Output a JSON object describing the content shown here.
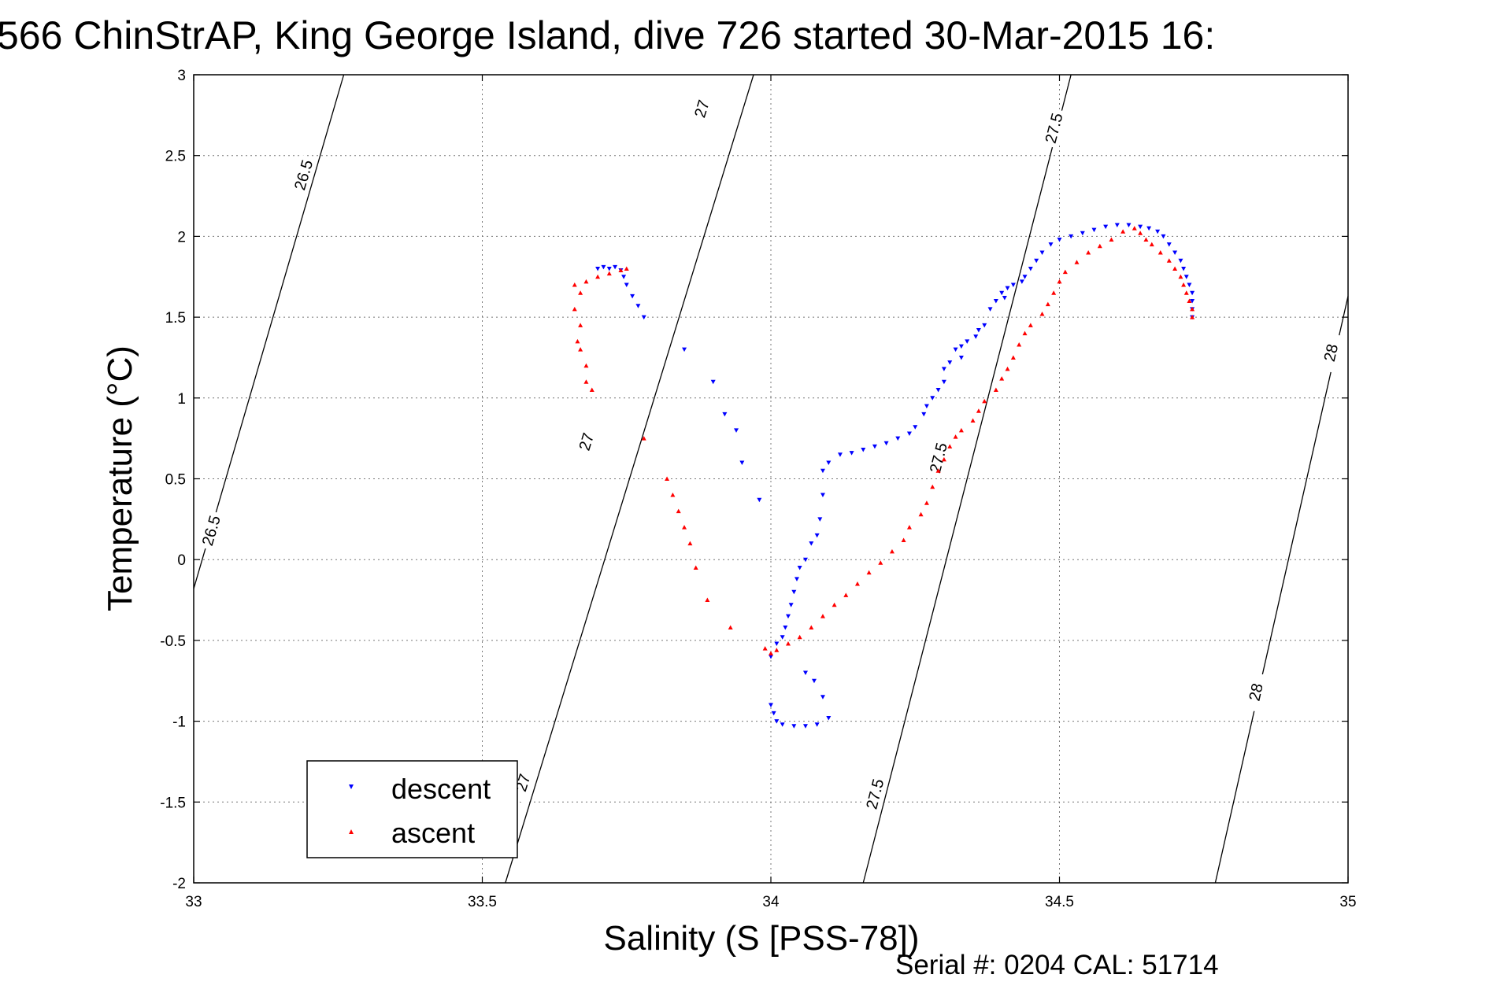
{
  "chart_data": {
    "type": "scatter",
    "title": "566 ChinStrAP, King George Island, dive 726 started 30-Mar-2015 16:",
    "xlabel": "Salinity (S [PSS-78])",
    "ylabel": "Temperature (°C)",
    "footer": "Serial #: 0204  CAL: 51714",
    "xlim": [
      33,
      35
    ],
    "ylim": [
      -2,
      3
    ],
    "grid": true,
    "legend_position": "bottom-left",
    "x_ticks": [
      "33",
      "33.5",
      "34",
      "34.5",
      "35"
    ],
    "y_ticks": [
      "3",
      "2.5",
      "2",
      "1.5",
      "1",
      "0.5",
      "0",
      "-0.5",
      "-1",
      "-1.5",
      "-2"
    ],
    "contours": [
      {
        "label": "26.5",
        "points": [
          [
            33.0,
            -0.18
          ],
          [
            33.26,
            3.0
          ]
        ],
        "label_positions": [
          [
            33.19,
            2.38
          ],
          [
            33.03,
            0.18
          ]
        ]
      },
      {
        "label": "27",
        "points": [
          [
            33.54,
            -2.0
          ],
          [
            33.97,
            3.0
          ]
        ],
        "label_positions": [
          [
            33.88,
            2.79
          ],
          [
            33.68,
            0.73
          ],
          [
            33.57,
            -1.38
          ]
        ]
      },
      {
        "label": "27.5",
        "points": [
          [
            34.16,
            -2.0
          ],
          [
            34.52,
            3.0
          ]
        ],
        "label_positions": [
          [
            34.49,
            2.67
          ],
          [
            34.29,
            0.63
          ],
          [
            34.18,
            -1.45
          ]
        ]
      },
      {
        "label": "28",
        "points": [
          [
            34.77,
            -2.0
          ],
          [
            35.0,
            1.63
          ]
        ],
        "label_positions": [
          [
            34.97,
            1.28
          ],
          [
            34.84,
            -0.82
          ]
        ]
      }
    ],
    "series": [
      {
        "name": "descent",
        "color": "#0000ff",
        "marker": "triangle-down",
        "points": [
          [
            34.73,
            1.5
          ],
          [
            34.73,
            1.55
          ],
          [
            34.73,
            1.6
          ],
          [
            34.73,
            1.65
          ],
          [
            34.725,
            1.7
          ],
          [
            34.72,
            1.75
          ],
          [
            34.715,
            1.8
          ],
          [
            34.71,
            1.85
          ],
          [
            34.7,
            1.9
          ],
          [
            34.69,
            1.95
          ],
          [
            34.68,
            2.0
          ],
          [
            34.67,
            2.03
          ],
          [
            34.655,
            2.05
          ],
          [
            34.64,
            2.06
          ],
          [
            34.62,
            2.07
          ],
          [
            34.6,
            2.07
          ],
          [
            34.58,
            2.06
          ],
          [
            34.56,
            2.04
          ],
          [
            34.54,
            2.02
          ],
          [
            34.52,
            2.0
          ],
          [
            34.5,
            1.98
          ],
          [
            34.485,
            1.95
          ],
          [
            34.47,
            1.9
          ],
          [
            34.46,
            1.85
          ],
          [
            34.45,
            1.8
          ],
          [
            34.44,
            1.75
          ],
          [
            34.435,
            1.72
          ],
          [
            34.42,
            1.7
          ],
          [
            34.41,
            1.68
          ],
          [
            34.405,
            1.62
          ],
          [
            34.4,
            1.65
          ],
          [
            34.39,
            1.6
          ],
          [
            34.38,
            1.55
          ],
          [
            34.37,
            1.45
          ],
          [
            34.36,
            1.42
          ],
          [
            34.355,
            1.38
          ],
          [
            34.34,
            1.35
          ],
          [
            34.33,
            1.32
          ],
          [
            34.33,
            1.25
          ],
          [
            34.32,
            1.3
          ],
          [
            34.31,
            1.22
          ],
          [
            34.3,
            1.18
          ],
          [
            34.3,
            1.1
          ],
          [
            34.29,
            1.05
          ],
          [
            34.28,
            1.0
          ],
          [
            34.27,
            0.95
          ],
          [
            34.265,
            0.9
          ],
          [
            34.25,
            0.82
          ],
          [
            34.24,
            0.78
          ],
          [
            34.22,
            0.75
          ],
          [
            34.2,
            0.72
          ],
          [
            34.18,
            0.7
          ],
          [
            34.16,
            0.68
          ],
          [
            34.14,
            0.66
          ],
          [
            34.12,
            0.65
          ],
          [
            34.1,
            0.6
          ],
          [
            34.09,
            0.55
          ],
          [
            34.09,
            0.4
          ],
          [
            34.085,
            0.25
          ],
          [
            34.08,
            0.15
          ],
          [
            34.07,
            0.1
          ],
          [
            34.06,
            0.0
          ],
          [
            34.05,
            -0.05
          ],
          [
            34.045,
            -0.12
          ],
          [
            34.04,
            -0.2
          ],
          [
            34.035,
            -0.28
          ],
          [
            34.03,
            -0.35
          ],
          [
            34.025,
            -0.42
          ],
          [
            34.02,
            -0.48
          ],
          [
            34.01,
            -0.52
          ],
          [
            34.0,
            -0.6
          ],
          [
            34.0,
            -0.9
          ],
          [
            34.005,
            -0.95
          ],
          [
            34.01,
            -1.0
          ],
          [
            34.02,
            -1.02
          ],
          [
            34.04,
            -1.03
          ],
          [
            34.06,
            -1.03
          ],
          [
            34.08,
            -1.02
          ],
          [
            34.1,
            -0.98
          ],
          [
            34.09,
            -0.85
          ],
          [
            34.075,
            -0.75
          ],
          [
            34.06,
            -0.7
          ],
          [
            33.98,
            0.37
          ],
          [
            33.95,
            0.6
          ],
          [
            33.94,
            0.8
          ],
          [
            33.92,
            0.9
          ],
          [
            33.9,
            1.1
          ],
          [
            33.85,
            1.3
          ],
          [
            33.78,
            1.5
          ],
          [
            33.77,
            1.57
          ],
          [
            33.76,
            1.63
          ],
          [
            33.75,
            1.7
          ],
          [
            33.745,
            1.75
          ],
          [
            33.74,
            1.79
          ],
          [
            33.73,
            1.81
          ],
          [
            33.72,
            1.8
          ],
          [
            33.71,
            1.81
          ],
          [
            33.7,
            1.8
          ]
        ]
      },
      {
        "name": "ascent",
        "color": "#ff0000",
        "marker": "triangle-up",
        "points": [
          [
            34.73,
            1.5
          ],
          [
            34.73,
            1.55
          ],
          [
            34.725,
            1.6
          ],
          [
            34.72,
            1.65
          ],
          [
            34.715,
            1.7
          ],
          [
            34.71,
            1.75
          ],
          [
            34.7,
            1.8
          ],
          [
            34.69,
            1.85
          ],
          [
            34.675,
            1.9
          ],
          [
            34.66,
            1.95
          ],
          [
            34.65,
            1.98
          ],
          [
            34.64,
            2.02
          ],
          [
            34.63,
            2.05
          ],
          [
            34.61,
            2.03
          ],
          [
            34.59,
            1.98
          ],
          [
            34.57,
            1.94
          ],
          [
            34.55,
            1.9
          ],
          [
            34.53,
            1.84
          ],
          [
            34.51,
            1.78
          ],
          [
            34.5,
            1.72
          ],
          [
            34.49,
            1.65
          ],
          [
            34.48,
            1.58
          ],
          [
            34.47,
            1.52
          ],
          [
            34.45,
            1.45
          ],
          [
            34.44,
            1.4
          ],
          [
            34.43,
            1.33
          ],
          [
            34.42,
            1.25
          ],
          [
            34.41,
            1.18
          ],
          [
            34.4,
            1.12
          ],
          [
            34.39,
            1.05
          ],
          [
            34.37,
            0.98
          ],
          [
            34.36,
            0.92
          ],
          [
            34.35,
            0.86
          ],
          [
            34.33,
            0.8
          ],
          [
            34.32,
            0.76
          ],
          [
            34.31,
            0.7
          ],
          [
            34.3,
            0.62
          ],
          [
            34.29,
            0.55
          ],
          [
            34.28,
            0.45
          ],
          [
            34.27,
            0.35
          ],
          [
            34.26,
            0.28
          ],
          [
            34.24,
            0.2
          ],
          [
            34.23,
            0.12
          ],
          [
            34.21,
            0.05
          ],
          [
            34.19,
            -0.02
          ],
          [
            34.17,
            -0.08
          ],
          [
            34.15,
            -0.15
          ],
          [
            34.13,
            -0.22
          ],
          [
            34.11,
            -0.28
          ],
          [
            34.09,
            -0.35
          ],
          [
            34.07,
            -0.42
          ],
          [
            34.05,
            -0.48
          ],
          [
            34.03,
            -0.52
          ],
          [
            34.01,
            -0.56
          ],
          [
            34.0,
            -0.58
          ],
          [
            33.99,
            -0.55
          ],
          [
            33.93,
            -0.42
          ],
          [
            33.89,
            -0.25
          ],
          [
            33.87,
            -0.05
          ],
          [
            33.86,
            0.1
          ],
          [
            33.85,
            0.2
          ],
          [
            33.84,
            0.3
          ],
          [
            33.83,
            0.4
          ],
          [
            33.82,
            0.5
          ],
          [
            33.78,
            0.75
          ],
          [
            33.69,
            1.05
          ],
          [
            33.68,
            1.2
          ],
          [
            33.665,
            1.35
          ],
          [
            33.67,
            1.45
          ],
          [
            33.66,
            1.55
          ],
          [
            33.67,
            1.65
          ],
          [
            33.68,
            1.72
          ],
          [
            33.7,
            1.75
          ],
          [
            33.72,
            1.77
          ],
          [
            33.74,
            1.79
          ],
          [
            33.75,
            1.8
          ],
          [
            33.66,
            1.7
          ],
          [
            33.67,
            1.3
          ],
          [
            33.68,
            1.1
          ]
        ]
      }
    ]
  }
}
